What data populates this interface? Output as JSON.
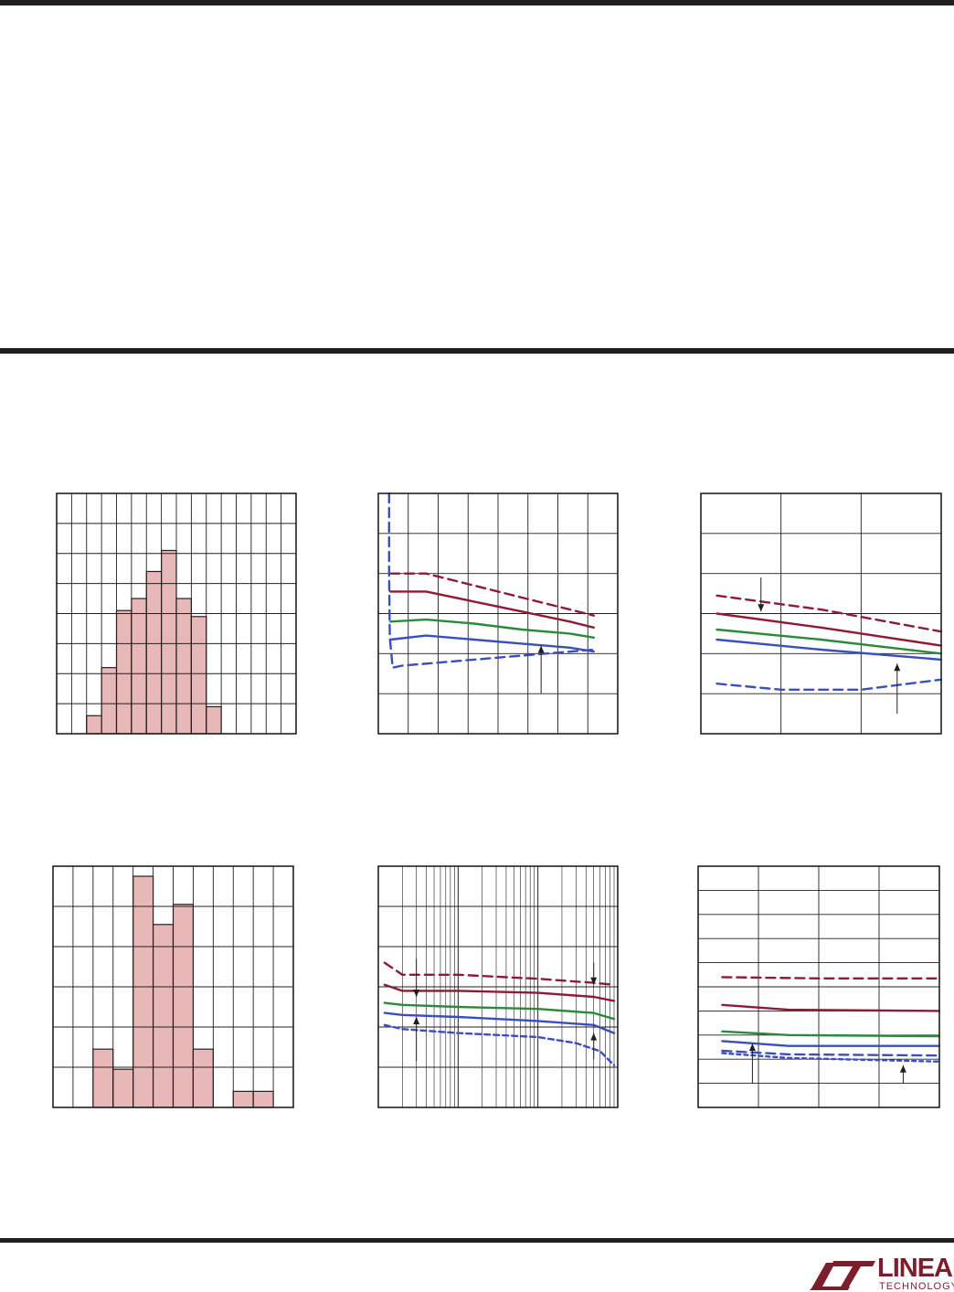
{
  "page": {
    "brand": {
      "line1": "LINEAR",
      "line2": "TECHNOLOGY"
    }
  },
  "colors": {
    "rule": "#231f20",
    "grid": "#231f20",
    "bar_fill": "#e8b8b8",
    "dark_red": "#8e1b35",
    "green": "#2a8a3a",
    "blue": "#3a4ec0",
    "brand": "#7a1f2b"
  },
  "chart_data": [
    {
      "id": "c1",
      "type": "bar",
      "xlim": [
        0,
        16
      ],
      "ylim": [
        0,
        8
      ],
      "grid_x": 16,
      "grid_y": 8,
      "x": [
        2,
        3,
        4,
        5,
        6,
        7,
        8,
        9,
        10,
        11
      ],
      "values": [
        0.6,
        2.2,
        4.1,
        4.5,
        5.4,
        6.1,
        4.5,
        3.9,
        0.9,
        0.0
      ],
      "bar_width": 1
    },
    {
      "id": "c2",
      "type": "line",
      "xlim": [
        0,
        100
      ],
      "ylim": [
        0,
        6
      ],
      "grid_x": 8,
      "grid_y": 6,
      "series": [
        {
          "color": "dark_red",
          "dash": "10,6",
          "x": [
            5,
            20,
            40,
            60,
            80,
            90
          ],
          "y": [
            4.0,
            4.0,
            3.7,
            3.4,
            3.1,
            2.95
          ]
        },
        {
          "color": "dark_red",
          "dash": "",
          "x": [
            5,
            20,
            40,
            60,
            80,
            90
          ],
          "y": [
            3.55,
            3.55,
            3.3,
            3.05,
            2.8,
            2.65
          ]
        },
        {
          "color": "green",
          "dash": "",
          "x": [
            5,
            20,
            40,
            60,
            80,
            90
          ],
          "y": [
            2.8,
            2.85,
            2.75,
            2.6,
            2.5,
            2.4
          ]
        },
        {
          "color": "blue",
          "dash": "",
          "x": [
            5,
            20,
            40,
            60,
            80,
            90
          ],
          "y": [
            2.35,
            2.45,
            2.35,
            2.25,
            2.15,
            2.05
          ]
        },
        {
          "color": "blue",
          "dash": "10,6",
          "x": [
            4.5,
            4.5,
            4.8,
            6,
            10,
            30,
            60,
            90
          ],
          "y": [
            6.0,
            4.0,
            2.4,
            1.65,
            1.7,
            1.8,
            1.95,
            2.1
          ]
        }
      ],
      "arrows": [
        {
          "x": 68,
          "y1": 1.0,
          "y2": 2.2
        }
      ]
    },
    {
      "id": "c3",
      "type": "line",
      "xlim": [
        0,
        3
      ],
      "ylim": [
        0,
        6
      ],
      "grid_x": 3,
      "grid_y": 6,
      "series": [
        {
          "color": "dark_red",
          "dash": "10,6",
          "x": [
            0.2,
            1.5,
            3.0
          ],
          "y": [
            3.45,
            3.1,
            2.55
          ]
        },
        {
          "color": "dark_red",
          "dash": "",
          "x": [
            0.2,
            1.5,
            3.0
          ],
          "y": [
            3.0,
            2.65,
            2.2
          ]
        },
        {
          "color": "green",
          "dash": "",
          "x": [
            0.2,
            1.5,
            3.0
          ],
          "y": [
            2.6,
            2.35,
            2.0
          ]
        },
        {
          "color": "blue",
          "dash": "",
          "x": [
            0.2,
            1.5,
            3.0
          ],
          "y": [
            2.35,
            2.1,
            1.85
          ]
        },
        {
          "color": "blue",
          "dash": "10,6",
          "x": [
            0.2,
            1.0,
            2.0,
            3.0
          ],
          "y": [
            1.25,
            1.1,
            1.1,
            1.35
          ]
        }
      ],
      "arrows": [
        {
          "x": 0.75,
          "y1": 3.9,
          "y2": 3.05
        },
        {
          "x": 2.45,
          "y1": 0.5,
          "y2": 1.75
        }
      ]
    },
    {
      "id": "c4",
      "type": "bar",
      "xlim": [
        0,
        12
      ],
      "ylim": [
        0,
        6
      ],
      "grid_x": 12,
      "grid_y": 6,
      "x": [
        2,
        3,
        4,
        5,
        6,
        7,
        9,
        10
      ],
      "values": [
        1.45,
        0.95,
        5.75,
        4.55,
        5.05,
        1.45,
        0.4,
        0.4
      ],
      "bar_width": 1
    },
    {
      "id": "c5",
      "type": "line",
      "xscale": "log",
      "xlim": [
        1,
        1000
      ],
      "ylim": [
        0,
        6
      ],
      "grid_y": 6,
      "series": [
        {
          "color": "dark_red",
          "dash": "10,6",
          "x": [
            1.2,
            2,
            3,
            10,
            100,
            500,
            900
          ],
          "y": [
            3.6,
            3.3,
            3.3,
            3.3,
            3.2,
            3.1,
            3.05
          ]
        },
        {
          "color": "dark_red",
          "dash": "",
          "x": [
            1.2,
            2,
            3,
            10,
            100,
            500,
            900
          ],
          "y": [
            3.05,
            2.9,
            2.9,
            2.9,
            2.85,
            2.75,
            2.65
          ]
        },
        {
          "color": "green",
          "dash": "",
          "x": [
            1.2,
            2,
            10,
            100,
            500,
            900
          ],
          "y": [
            2.6,
            2.55,
            2.5,
            2.45,
            2.35,
            2.2
          ]
        },
        {
          "color": "blue",
          "dash": "",
          "x": [
            1.2,
            2,
            10,
            100,
            500,
            900
          ],
          "y": [
            2.35,
            2.3,
            2.25,
            2.15,
            2.05,
            1.85
          ]
        },
        {
          "color": "blue",
          "dash": "6,4",
          "x": [
            1.2,
            2,
            10,
            100,
            300,
            600,
            900
          ],
          "y": [
            2.05,
            1.95,
            1.85,
            1.75,
            1.6,
            1.4,
            1.05
          ]
        }
      ],
      "arrows": [
        {
          "x": 3,
          "y1": 3.7,
          "y2": 2.75
        },
        {
          "x": 3,
          "y1": 1.15,
          "y2": 2.25
        },
        {
          "x": 500,
          "y1": 3.6,
          "y2": 3.05
        },
        {
          "x": 500,
          "y1": 1.2,
          "y2": 1.85
        }
      ]
    },
    {
      "id": "c6",
      "type": "line",
      "xlim": [
        0,
        4
      ],
      "ylim": [
        0,
        10
      ],
      "grid_x": 4,
      "grid_y": 10,
      "series": [
        {
          "color": "dark_red",
          "dash": "10,6",
          "x": [
            0.4,
            2,
            4
          ],
          "y": [
            5.4,
            5.35,
            5.35
          ]
        },
        {
          "color": "dark_red",
          "dash": "",
          "x": [
            0.4,
            1.5,
            4
          ],
          "y": [
            4.25,
            4.05,
            4.0
          ]
        },
        {
          "color": "green",
          "dash": "",
          "x": [
            0.4,
            1.5,
            4
          ],
          "y": [
            3.15,
            3.0,
            2.95
          ]
        },
        {
          "color": "blue",
          "dash": "",
          "x": [
            0.4,
            1.5,
            4
          ],
          "y": [
            2.75,
            2.55,
            2.55
          ]
        },
        {
          "color": "blue",
          "dash": "10,6",
          "x": [
            0.4,
            1.5,
            4
          ],
          "y": [
            2.35,
            2.2,
            2.15
          ]
        },
        {
          "color": "blue",
          "dash": "4,4",
          "x": [
            0.4,
            1.5,
            4
          ],
          "y": [
            2.25,
            2.05,
            1.9
          ]
        }
      ],
      "arrows": [
        {
          "x": 0.9,
          "y1": 1.0,
          "y2": 2.65
        },
        {
          "x": 3.4,
          "y1": 1.0,
          "y2": 1.75
        }
      ]
    }
  ]
}
